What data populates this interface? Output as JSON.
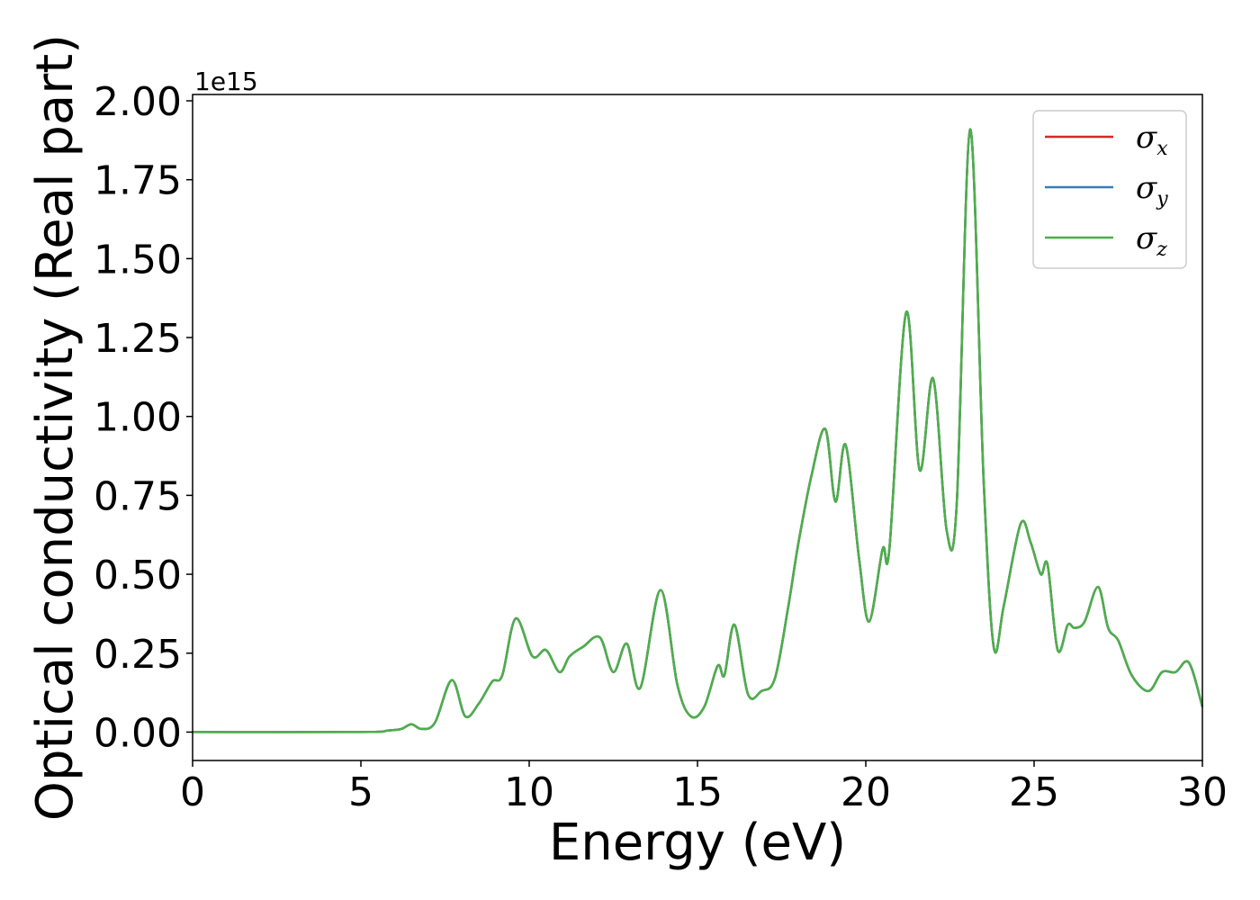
{
  "chart_data": {
    "type": "line",
    "title": "",
    "xlabel": "Energy (eV)",
    "ylabel": "Optical conductivity (Real part)",
    "y_offset_text": "1e15",
    "y_scale_factor": 1000000000000000.0,
    "xlim": [
      0,
      30
    ],
    "ylim": [
      -0.09,
      2.02
    ],
    "x_ticks": [
      0,
      5,
      10,
      15,
      20,
      25,
      30
    ],
    "x_tick_labels": [
      "0",
      "5",
      "10",
      "15",
      "20",
      "25",
      "30"
    ],
    "y_ticks": [
      0,
      0.25,
      0.5,
      0.75,
      1.0,
      1.25,
      1.5,
      1.75,
      2.0
    ],
    "y_tick_labels": [
      "0.00",
      "0.25",
      "0.50",
      "0.75",
      "1.00",
      "1.25",
      "1.50",
      "1.75",
      "2.00"
    ],
    "grid": false,
    "legend_position": "top-right",
    "series": [
      {
        "name": "σx",
        "symbol": "σ",
        "subscript": "x",
        "color": "#d62728",
        "x": [
          0,
          5,
          5.8,
          6.2,
          6.5,
          6.8,
          7.2,
          7.7,
          8.1,
          8.5,
          8.9,
          9.2,
          9.6,
          10.1,
          10.5,
          10.9,
          11.2,
          11.6,
          12.1,
          12.5,
          12.9,
          13.3,
          13.9,
          14.4,
          14.8,
          15.2,
          15.6,
          15.8,
          16.1,
          16.5,
          16.9,
          17.3,
          17.7,
          18,
          18.4,
          18.8,
          19.1,
          19.4,
          19.8,
          20.1,
          20.5,
          20.7,
          21.2,
          21.6,
          22,
          22.4,
          22.7,
          23.1,
          23.5,
          23.8,
          24.1,
          24.6,
          24.9,
          25.2,
          25.4,
          25.7,
          26.0,
          26.2,
          26.5,
          26.9,
          27.2,
          27.5,
          27.9,
          28.4,
          28.8,
          29.2,
          29.6,
          30
        ],
        "values": [
          0,
          0,
          0.005,
          0.01,
          0.025,
          0.01,
          0.03,
          0.165,
          0.05,
          0.09,
          0.16,
          0.18,
          0.36,
          0.24,
          0.26,
          0.19,
          0.24,
          0.27,
          0.3,
          0.19,
          0.28,
          0.14,
          0.45,
          0.15,
          0.05,
          0.08,
          0.21,
          0.18,
          0.34,
          0.12,
          0.13,
          0.17,
          0.4,
          0.6,
          0.82,
          0.96,
          0.73,
          0.91,
          0.55,
          0.35,
          0.58,
          0.58,
          1.33,
          0.83,
          1.12,
          0.64,
          0.72,
          1.91,
          0.8,
          0.27,
          0.4,
          0.66,
          0.6,
          0.5,
          0.53,
          0.26,
          0.34,
          0.33,
          0.35,
          0.46,
          0.33,
          0.29,
          0.18,
          0.13,
          0.19,
          0.19,
          0.22,
          0.08
        ]
      },
      {
        "name": "σy",
        "symbol": "σ",
        "subscript": "y",
        "color": "#377eb8",
        "x": [
          0,
          5,
          5.8,
          6.2,
          6.5,
          6.8,
          7.2,
          7.7,
          8.1,
          8.5,
          8.9,
          9.2,
          9.6,
          10.1,
          10.5,
          10.9,
          11.2,
          11.6,
          12.1,
          12.5,
          12.9,
          13.3,
          13.9,
          14.4,
          14.8,
          15.2,
          15.6,
          15.8,
          16.1,
          16.5,
          16.9,
          17.3,
          17.7,
          18,
          18.4,
          18.8,
          19.1,
          19.4,
          19.8,
          20.1,
          20.5,
          20.7,
          21.2,
          21.6,
          22,
          22.4,
          22.7,
          23.1,
          23.5,
          23.8,
          24.1,
          24.6,
          24.9,
          25.2,
          25.4,
          25.7,
          26.0,
          26.2,
          26.5,
          26.9,
          27.2,
          27.5,
          27.9,
          28.4,
          28.8,
          29.2,
          29.6,
          30
        ],
        "values": [
          0,
          0,
          0.005,
          0.01,
          0.025,
          0.01,
          0.03,
          0.165,
          0.05,
          0.09,
          0.16,
          0.18,
          0.36,
          0.24,
          0.26,
          0.19,
          0.24,
          0.27,
          0.3,
          0.19,
          0.28,
          0.14,
          0.45,
          0.15,
          0.05,
          0.08,
          0.21,
          0.18,
          0.34,
          0.12,
          0.13,
          0.17,
          0.4,
          0.6,
          0.82,
          0.96,
          0.73,
          0.91,
          0.55,
          0.35,
          0.58,
          0.58,
          1.33,
          0.83,
          1.12,
          0.64,
          0.72,
          1.91,
          0.8,
          0.27,
          0.4,
          0.66,
          0.6,
          0.5,
          0.53,
          0.26,
          0.34,
          0.33,
          0.35,
          0.46,
          0.33,
          0.29,
          0.18,
          0.13,
          0.19,
          0.19,
          0.22,
          0.08
        ]
      },
      {
        "name": "σz",
        "symbol": "σ",
        "subscript": "z",
        "color": "#4daf4a",
        "x": [
          0,
          5,
          5.8,
          6.2,
          6.5,
          6.8,
          7.2,
          7.7,
          8.1,
          8.5,
          8.9,
          9.2,
          9.6,
          10.1,
          10.5,
          10.9,
          11.2,
          11.6,
          12.1,
          12.5,
          12.9,
          13.3,
          13.9,
          14.4,
          14.8,
          15.2,
          15.6,
          15.8,
          16.1,
          16.5,
          16.9,
          17.3,
          17.7,
          18,
          18.4,
          18.8,
          19.1,
          19.4,
          19.8,
          20.1,
          20.5,
          20.7,
          21.2,
          21.6,
          22,
          22.4,
          22.7,
          23.1,
          23.5,
          23.8,
          24.1,
          24.6,
          24.9,
          25.2,
          25.4,
          25.7,
          26.0,
          26.2,
          26.5,
          26.9,
          27.2,
          27.5,
          27.9,
          28.4,
          28.8,
          29.2,
          29.6,
          30
        ],
        "values": [
          0,
          0,
          0.005,
          0.01,
          0.025,
          0.01,
          0.03,
          0.165,
          0.05,
          0.09,
          0.16,
          0.18,
          0.36,
          0.24,
          0.26,
          0.19,
          0.24,
          0.27,
          0.3,
          0.19,
          0.28,
          0.14,
          0.45,
          0.15,
          0.05,
          0.08,
          0.21,
          0.18,
          0.34,
          0.12,
          0.13,
          0.17,
          0.4,
          0.6,
          0.82,
          0.96,
          0.73,
          0.91,
          0.55,
          0.35,
          0.58,
          0.58,
          1.33,
          0.83,
          1.12,
          0.64,
          0.72,
          1.91,
          0.8,
          0.27,
          0.4,
          0.66,
          0.6,
          0.5,
          0.53,
          0.26,
          0.34,
          0.33,
          0.35,
          0.46,
          0.33,
          0.29,
          0.18,
          0.13,
          0.19,
          0.19,
          0.22,
          0.08
        ]
      }
    ]
  }
}
